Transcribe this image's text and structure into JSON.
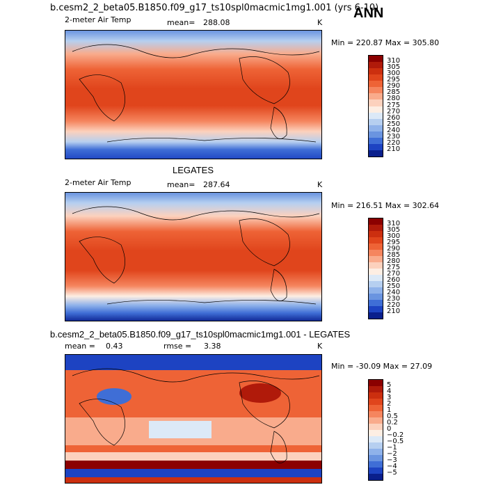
{
  "header": {
    "case_title": "b.cesm2_2_beta05.B1850.f09_g17_ts10spl0macmic1mg1.001 (yrs 6-10)",
    "season": "ANN"
  },
  "panels": [
    {
      "id": "model",
      "title": "",
      "variable": "2-meter Air Temp",
      "stat_label": "mean=",
      "stat_value": "288.08",
      "units": "K",
      "minmax": "Min = 220.87 Max = 305.80",
      "colorbar": {
        "labels": [
          "310",
          "305",
          "300",
          "295",
          "290",
          "285",
          "280",
          "275",
          "270",
          "260",
          "250",
          "240",
          "230",
          "220",
          "210"
        ],
        "colors": [
          "#8b0000",
          "#b01a0a",
          "#cc2f0f",
          "#e0451c",
          "#ee6336",
          "#f5855e",
          "#f9ab8c",
          "#fcd1bd",
          "#fdeee3",
          "#dce9f7",
          "#b6cff0",
          "#8fb2ea",
          "#6a94e0",
          "#3f6ed6",
          "#1d43c2",
          "#0a1f8c"
        ]
      }
    },
    {
      "id": "obs",
      "title": "LEGATES",
      "variable": "2-meter Air Temp",
      "stat_label": "mean=",
      "stat_value": "287.64",
      "units": "K",
      "minmax": "Min = 216.51 Max = 302.64",
      "colorbar": {
        "labels": [
          "310",
          "305",
          "300",
          "295",
          "290",
          "285",
          "280",
          "275",
          "270",
          "260",
          "250",
          "240",
          "230",
          "220",
          "210"
        ],
        "colors": [
          "#8b0000",
          "#b01a0a",
          "#cc2f0f",
          "#e0451c",
          "#ee6336",
          "#f5855e",
          "#f9ab8c",
          "#fcd1bd",
          "#fdeee3",
          "#dce9f7",
          "#b6cff0",
          "#8fb2ea",
          "#6a94e0",
          "#3f6ed6",
          "#1d43c2",
          "#0a1f8c"
        ]
      }
    },
    {
      "id": "diff",
      "title": "b.cesm2_2_beta05.B1850.f09_g17_ts10spl0macmic1mg1.001 - LEGATES",
      "variable": "",
      "stat_label": "mean =",
      "stat_value": "0.43",
      "stat2_label": "rmse =",
      "stat2_value": "3.38",
      "units": "K",
      "minmax": "Min = -30.09 Max =  27.09",
      "colorbar": {
        "labels": [
          "5",
          "4",
          "3",
          "2",
          "1",
          "0.5",
          "0.2",
          "0",
          "−0.2",
          "−0.5",
          "−1",
          "−2",
          "−3",
          "−4",
          "−5"
        ],
        "colors": [
          "#8b0000",
          "#b01a0a",
          "#cc2f0f",
          "#e0451c",
          "#ee6336",
          "#f5855e",
          "#f9ab8c",
          "#fcd1bd",
          "#fdeee3",
          "#dce9f7",
          "#b6cff0",
          "#8fb2ea",
          "#6a94e0",
          "#3f6ed6",
          "#1d43c2",
          "#0a1f8c"
        ]
      }
    }
  ]
}
